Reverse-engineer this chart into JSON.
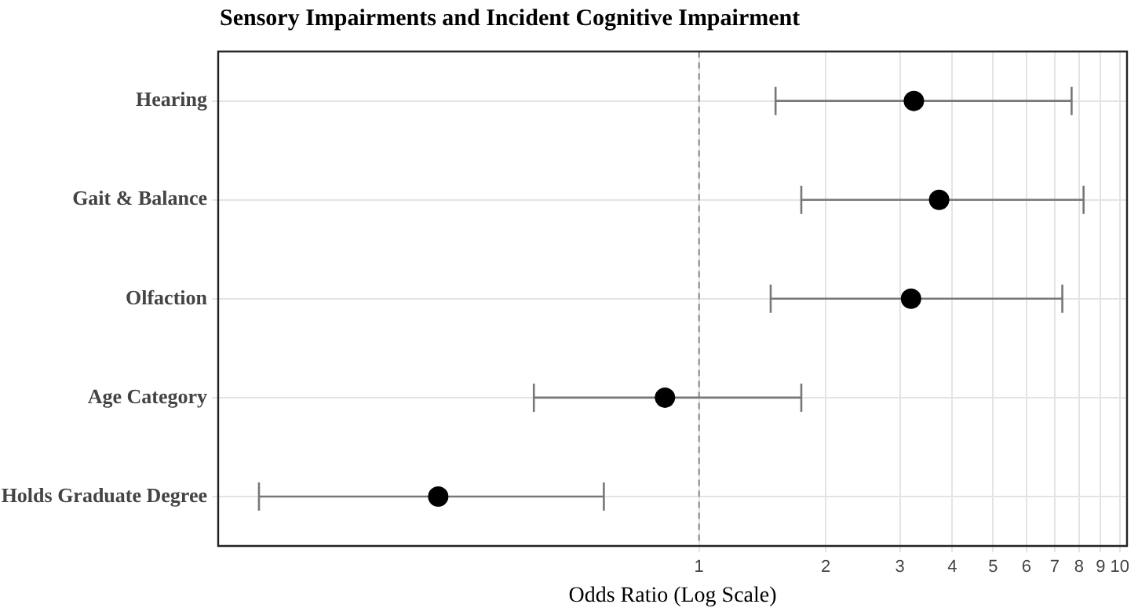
{
  "chart_data": {
    "type": "scatter",
    "title": "Sensory Impairments and Incident Cognitive Impairment",
    "xlabel": "Odds Ratio (Log Scale)",
    "categories": [
      "Hearing",
      "Gait & Balance",
      "Olfaction",
      "Age Category",
      "Holds Graduate Degree"
    ],
    "orientation": "horizontal",
    "log": "x",
    "marker": "circle",
    "grid": true,
    "legend": false,
    "xlim": [
      0.072,
      10.4
    ],
    "xticks": [
      1,
      2,
      3,
      4,
      5,
      6,
      7,
      8,
      9,
      10
    ],
    "series": [
      {
        "color": "#000000",
        "values": [
          3.24,
          3.72,
          3.19,
          0.83,
          0.24
        ],
        "errors": [
          [
            1.52,
            7.68
          ],
          [
            1.75,
            8.2
          ],
          [
            1.48,
            7.3
          ],
          [
            0.405,
            1.75
          ],
          [
            0.09,
            0.594
          ]
        ]
      }
    ],
    "ref_lines": [
      {
        "axis": "x",
        "value": 1,
        "label": null,
        "color": "#888888",
        "line_style": "dashed"
      }
    ]
  }
}
